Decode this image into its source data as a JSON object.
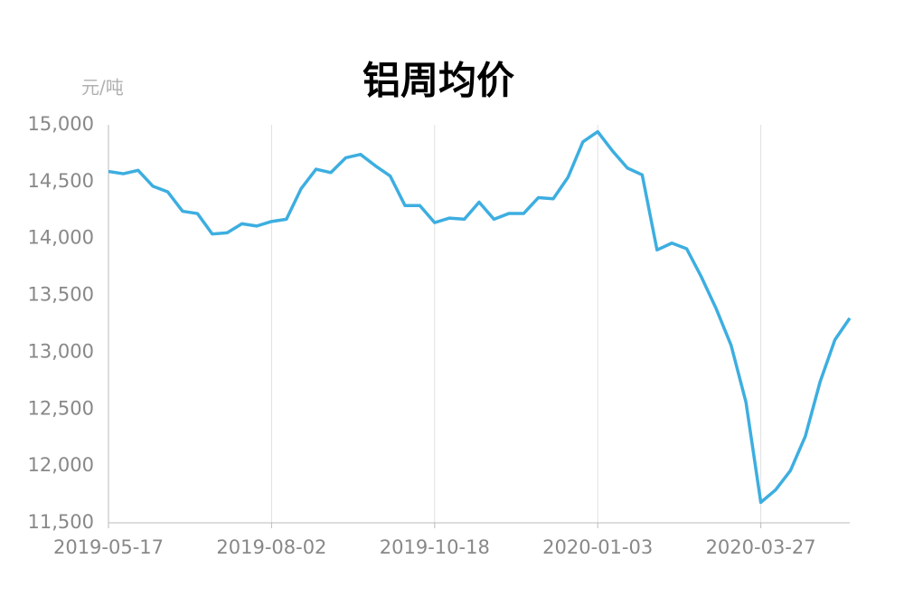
{
  "chart_data": {
    "type": "line",
    "title": "铝周均价",
    "y_label": "元/吨",
    "categories": [
      "2019-05-17",
      null,
      null,
      null,
      null,
      null,
      null,
      null,
      null,
      null,
      null,
      "2019-08-02",
      null,
      null,
      null,
      null,
      null,
      null,
      null,
      null,
      null,
      null,
      "2019-10-18",
      null,
      null,
      null,
      null,
      null,
      null,
      null,
      null,
      null,
      null,
      "2020-01-03",
      null,
      null,
      null,
      null,
      null,
      null,
      null,
      null,
      null,
      null,
      "2020-03-27",
      null,
      null,
      null,
      null,
      null,
      null
    ],
    "series": [
      {
        "color": "#3daee0",
        "values": [
          14590,
          14570,
          14600,
          14460,
          14410,
          14240,
          14220,
          14040,
          14050,
          14130,
          14110,
          14150,
          14170,
          14440,
          14610,
          14580,
          14710,
          14740,
          14640,
          14550,
          14290,
          14290,
          14140,
          14180,
          14170,
          14320,
          14170,
          14220,
          14220,
          14360,
          14350,
          14540,
          14850,
          14940,
          14770,
          14620,
          14560,
          13900,
          13960,
          13910,
          13660,
          13380,
          13060,
          12560,
          11680,
          11790,
          11960,
          12260,
          12740,
          13110,
          13300
        ]
      }
    ],
    "ylim": [
      11500,
      15000
    ],
    "yticks": [
      {
        "value": 11500,
        "label": "11,500"
      },
      {
        "value": 12000,
        "label": "12,000"
      },
      {
        "value": 12500,
        "label": "12,500"
      },
      {
        "value": 13000,
        "label": "13,000"
      },
      {
        "value": 13500,
        "label": "13,500"
      },
      {
        "value": 14000,
        "label": "14,000"
      },
      {
        "value": 14500,
        "label": "14,500"
      },
      {
        "value": 15000,
        "label": "15,000"
      }
    ],
    "grid": true
  }
}
